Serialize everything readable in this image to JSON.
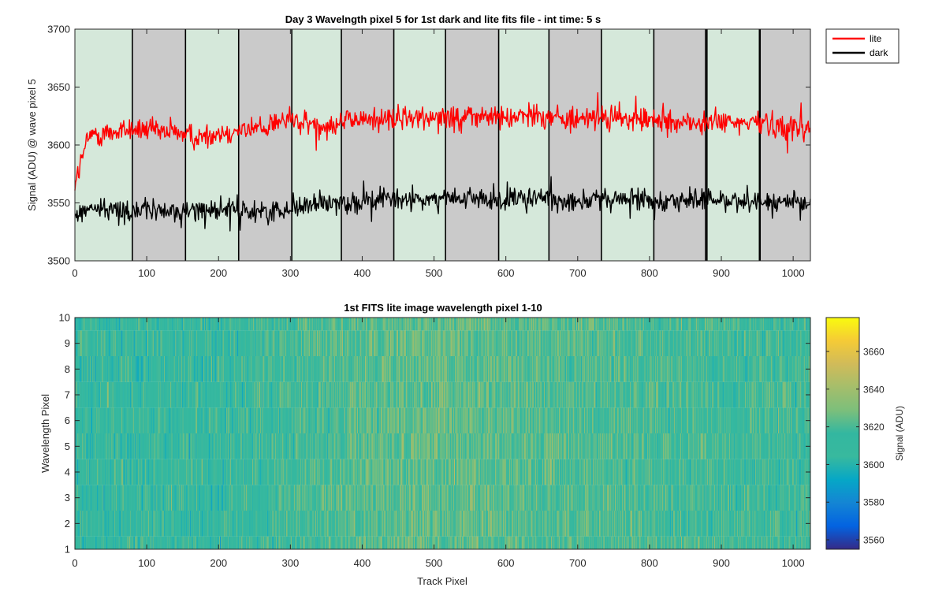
{
  "chart_data": [
    {
      "type": "line",
      "title": "Day 3 Wavelngth pixel 5 for 1st dark and lite fits file - int time: 5 s",
      "xlabel": "",
      "ylabel": "Signal (ADU) @ wave pixel 5",
      "xlim": [
        0,
        1024
      ],
      "ylim": [
        3500,
        3700
      ],
      "xticks": [
        0,
        100,
        200,
        300,
        400,
        500,
        600,
        700,
        800,
        900,
        1000
      ],
      "yticks": [
        3500,
        3550,
        3600,
        3650,
        3700
      ],
      "legend_position": "outside top-right",
      "series": [
        {
          "name": "lite",
          "color": "#ff0000",
          "x": [
            0,
            20,
            40,
            60,
            80,
            100,
            120,
            140,
            160,
            180,
            200,
            220,
            240,
            260,
            280,
            300,
            320,
            340,
            360,
            380,
            400,
            420,
            440,
            460,
            480,
            500,
            520,
            540,
            560,
            580,
            600,
            620,
            640,
            660,
            680,
            700,
            720,
            740,
            760,
            780,
            800,
            820,
            840,
            860,
            880,
            900,
            920,
            940,
            960,
            980,
            1000,
            1024
          ],
          "values": [
            3568,
            3608,
            3610,
            3612,
            3614,
            3613,
            3610,
            3612,
            3608,
            3607,
            3610,
            3613,
            3613,
            3615,
            3620,
            3622,
            3618,
            3617,
            3619,
            3621,
            3622,
            3623,
            3622,
            3623,
            3623,
            3626,
            3625,
            3624,
            3624,
            3625,
            3623,
            3626,
            3627,
            3625,
            3623,
            3622,
            3622,
            3623,
            3623,
            3622,
            3621,
            3621,
            3620,
            3619,
            3619,
            3620,
            3618,
            3619,
            3620,
            3617,
            3615,
            3615
          ]
        },
        {
          "name": "dark",
          "color": "#000000",
          "x": [
            0,
            20,
            40,
            60,
            80,
            100,
            120,
            140,
            160,
            180,
            200,
            220,
            240,
            260,
            280,
            300,
            320,
            340,
            360,
            380,
            400,
            420,
            440,
            460,
            480,
            500,
            520,
            540,
            560,
            580,
            600,
            620,
            640,
            660,
            680,
            700,
            720,
            740,
            760,
            780,
            800,
            820,
            840,
            860,
            880,
            900,
            920,
            940,
            960,
            980,
            1000,
            1024
          ],
          "values": [
            3538,
            3546,
            3545,
            3543,
            3544,
            3544,
            3543,
            3542,
            3543,
            3545,
            3545,
            3544,
            3543,
            3542,
            3543,
            3546,
            3548,
            3549,
            3550,
            3551,
            3552,
            3552,
            3553,
            3553,
            3553,
            3554,
            3554,
            3553,
            3553,
            3552,
            3552,
            3553,
            3554,
            3553,
            3553,
            3553,
            3553,
            3552,
            3553,
            3554,
            3553,
            3553,
            3552,
            3553,
            3552,
            3553,
            3552,
            3553,
            3551,
            3550,
            3549,
            3550
          ]
        }
      ],
      "shaded_bands": {
        "boundaries": [
          0,
          80,
          154,
          228,
          302,
          371,
          444,
          516,
          590,
          660,
          733,
          806,
          878,
          880,
          953,
          954,
          1024
        ],
        "colors": [
          "#d5e8da",
          "#cacaca",
          "#d5e8da",
          "#cacaca",
          "#d5e8da",
          "#cacaca",
          "#d5e8da",
          "#cacaca",
          "#d5e8da",
          "#cacaca",
          "#d5e8da",
          "#cacaca",
          "#cacaca",
          "#d5e8da",
          "#d5e8da",
          "#cacaca"
        ]
      },
      "grid": false
    },
    {
      "type": "heatmap",
      "title": "1st FITS lite image wavelength pixel 1-10",
      "xlabel": "Track Pixel",
      "ylabel": "Wavelength Pixel",
      "xlim": [
        0,
        1024
      ],
      "ylim": [
        1,
        10
      ],
      "xticks": [
        0,
        100,
        200,
        300,
        400,
        500,
        600,
        700,
        800,
        900,
        1000
      ],
      "yticks": [
        1,
        2,
        3,
        4,
        5,
        6,
        7,
        8,
        9,
        10
      ],
      "rows": 10,
      "columns": 1024,
      "mean_by_track_segment": {
        "x": [
          0,
          100,
          200,
          300,
          400,
          500,
          600,
          700,
          800,
          900,
          1000
        ],
        "values": [
          3610,
          3612,
          3611,
          3616,
          3622,
          3624,
          3623,
          3620,
          3618,
          3616,
          3614
        ]
      },
      "colorbar": {
        "label": "Signal (ADU)",
        "range": [
          3555,
          3678
        ],
        "ticks": [
          3560,
          3580,
          3600,
          3620,
          3640,
          3660
        ],
        "colormap": "parula"
      }
    }
  ]
}
